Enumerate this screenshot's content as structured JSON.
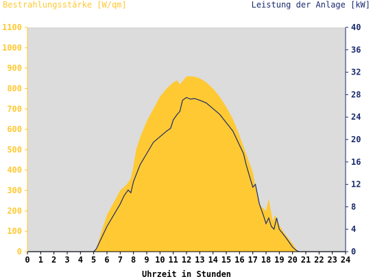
{
  "colors": {
    "plot_bg": "#dcdcdc",
    "irradiance": "#ffc933",
    "power": "#1a2a6c",
    "left_axis": "#ffc933",
    "right_axis": "#1a2a6c",
    "x_axis": "#000000"
  },
  "chart_data": {
    "type": "area",
    "title": "",
    "xlabel": "Uhrzeit in Stunden",
    "ylabel_left": "Bestrahlungsstärke [W/qm]",
    "ylabel_right": "Leistung der Anlage [kW]",
    "xlim": [
      0,
      24
    ],
    "ylim_left": [
      0,
      1100
    ],
    "ylim_right": [
      0,
      40
    ],
    "x_ticks": [
      "0",
      "1",
      "2",
      "3",
      "4",
      "5",
      "6",
      "7",
      "8",
      "9",
      "10",
      "11",
      "12",
      "13",
      "14",
      "15",
      "16",
      "17",
      "18",
      "19",
      "20",
      "21",
      "22",
      "23",
      "24"
    ],
    "y_ticks_left": [
      "0",
      "100",
      "200",
      "300",
      "400",
      "500",
      "600",
      "700",
      "800",
      "900",
      "1000",
      "1100"
    ],
    "y_ticks_right": [
      "0",
      "4",
      "8",
      "12",
      "16",
      "20",
      "24",
      "28",
      "32",
      "36",
      "40"
    ],
    "grid": false,
    "series": [
      {
        "name": "Bestrahlungsstärke [W/qm]",
        "axis": "left",
        "style": "filled-area",
        "x": [
          0,
          5,
          5.2,
          5.4,
          5.7,
          6,
          6.5,
          7,
          7.5,
          7.8,
          8,
          8.2,
          8.5,
          9,
          9.5,
          10,
          10.5,
          11,
          11.3,
          11.5,
          12,
          12.5,
          13,
          13.5,
          14,
          14.5,
          15,
          15.5,
          16,
          16.5,
          17,
          17.2,
          17.5,
          18,
          18.2,
          18.5,
          18.7,
          19,
          19.5,
          20,
          20.3,
          20.5,
          21,
          24
        ],
        "y": [
          0,
          0,
          15,
          60,
          120,
          180,
          240,
          300,
          330,
          360,
          420,
          500,
          560,
          640,
          700,
          760,
          800,
          830,
          840,
          820,
          860,
          860,
          850,
          830,
          800,
          760,
          710,
          650,
          570,
          480,
          390,
          320,
          230,
          200,
          260,
          150,
          180,
          130,
          80,
          40,
          10,
          0,
          0,
          0
        ]
      },
      {
        "name": "Leistung der Anlage [kW]",
        "axis": "right",
        "style": "line",
        "x": [
          0,
          5,
          5.2,
          5.5,
          6,
          6.5,
          7,
          7.3,
          7.6,
          7.8,
          8,
          8.5,
          9,
          9.5,
          10,
          10.5,
          10.8,
          11,
          11.3,
          11.5,
          11.7,
          12,
          12.3,
          12.6,
          13,
          13.5,
          14,
          14.5,
          15,
          15.5,
          16,
          16.3,
          16.5,
          17,
          17.2,
          17.5,
          17.8,
          18,
          18.2,
          18.4,
          18.6,
          18.8,
          19,
          19.5,
          20,
          20.3,
          20.5,
          21,
          24
        ],
        "y": [
          0,
          0,
          0.5,
          2,
          4.5,
          6.5,
          8.5,
          10,
          11,
          10.5,
          12.5,
          15.5,
          17.5,
          19.5,
          20.5,
          21.5,
          22,
          23.5,
          24.5,
          25,
          27,
          27.5,
          27.2,
          27.3,
          27,
          26.5,
          25.5,
          24.5,
          23,
          21.5,
          19,
          17.5,
          15.5,
          11.5,
          12,
          8.5,
          6.5,
          5,
          6,
          4.5,
          4,
          6,
          4,
          2.5,
          0.8,
          0.2,
          0,
          0,
          0
        ]
      }
    ]
  }
}
